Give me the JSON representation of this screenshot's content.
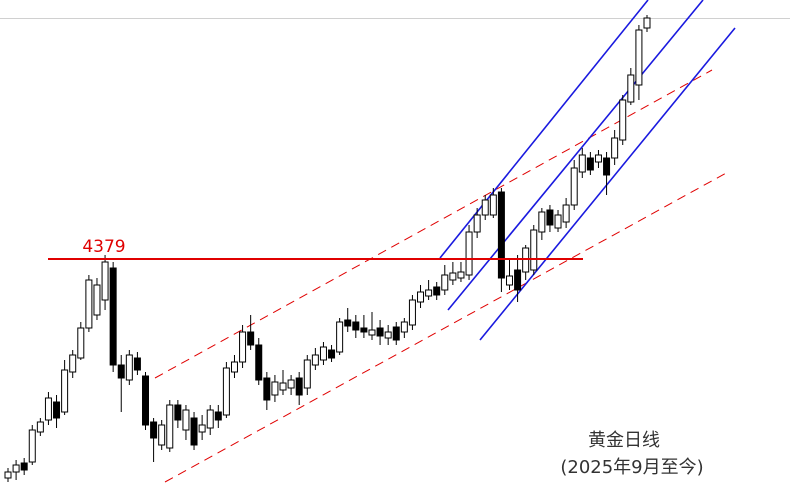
{
  "chart_data": {
    "type": "candlestick",
    "title": "黄金日线",
    "subtitle": "(2025年9月至今)",
    "level": 4379,
    "level_color": "#e00000",
    "up_color": "#ffffff",
    "down_color": "#000000",
    "edge_color": "#000000",
    "ylim": [
      3427,
      5415
    ],
    "open": [
      3503,
      3527,
      3563,
      3567,
      3687,
      3735,
      3807,
      3767,
      3927,
      3983,
      4103,
      4155,
      4215,
      4343,
      3955,
      3895,
      3983,
      3911,
      3727,
      3635,
      3623,
      3795,
      3695,
      3743,
      3687,
      3703,
      3767,
      3755,
      3927,
      3967,
      4087,
      4035,
      3903,
      3835,
      3855,
      3863,
      3903,
      3863,
      3955,
      3975,
      4015,
      4007,
      4135,
      4127,
      4103,
      4075,
      4103,
      4063,
      4107,
      4087,
      4115,
      4207,
      4231,
      4267,
      4255,
      4295,
      4303,
      4315,
      4487,
      4555,
      4555,
      4647,
      4275,
      4335,
      4327,
      4335,
      4487,
      4575,
      4503,
      4527,
      4595,
      4727,
      4783,
      4767,
      4783,
      4783,
      4855,
      5007,
      5075,
      5303
    ],
    "high": [
      3543,
      3575,
      3583,
      3715,
      3743,
      3847,
      3835,
      3975,
      4015,
      4127,
      4315,
      4303,
      4395,
      4367,
      3995,
      4015,
      4007,
      3927,
      3743,
      3735,
      3815,
      3815,
      3795,
      3767,
      3755,
      3795,
      3795,
      3967,
      3995,
      4115,
      4155,
      4063,
      3927,
      3915,
      3935,
      3915,
      3927,
      3995,
      4023,
      4047,
      4035,
      4143,
      4183,
      4155,
      4155,
      4167,
      4135,
      4115,
      4127,
      4143,
      4235,
      4275,
      4295,
      4287,
      4355,
      4367,
      4367,
      4515,
      4583,
      4635,
      4663,
      4663,
      4375,
      4395,
      4435,
      4515,
      4583,
      4595,
      4575,
      4623,
      4775,
      4823,
      4807,
      4815,
      4807,
      4895,
      5035,
      5143,
      5315,
      5355
    ],
    "low": [
      3487,
      3495,
      3515,
      3555,
      3671,
      3715,
      3703,
      3755,
      3903,
      3975,
      4087,
      4135,
      4175,
      3927,
      3767,
      3875,
      3915,
      3695,
      3567,
      3615,
      3607,
      3703,
      3655,
      3615,
      3655,
      3675,
      3703,
      3743,
      3903,
      3943,
      4015,
      3875,
      3775,
      3807,
      3835,
      3835,
      3795,
      3835,
      3935,
      3955,
      3967,
      3995,
      4087,
      4063,
      4063,
      4055,
      4035,
      4035,
      4035,
      4063,
      4095,
      4183,
      4215,
      4215,
      4235,
      4275,
      4287,
      4295,
      4463,
      4535,
      4543,
      4247,
      4255,
      4207,
      4295,
      4315,
      4455,
      4487,
      4487,
      4503,
      4575,
      4703,
      4715,
      4743,
      4635,
      4755,
      4835,
      4995,
      5015,
      5287
    ],
    "close": [
      3527,
      3555,
      3535,
      3695,
      3727,
      3823,
      3743,
      3935,
      3995,
      4103,
      4295,
      4275,
      4367,
      3955,
      3903,
      3995,
      3935,
      3715,
      3663,
      3715,
      3795,
      3735,
      3775,
      3635,
      3715,
      3775,
      3735,
      3943,
      3967,
      4087,
      4035,
      3895,
      3815,
      3887,
      3883,
      3895,
      3835,
      3975,
      3995,
      4027,
      3983,
      4127,
      4111,
      4095,
      4087,
      4095,
      4071,
      4087,
      4055,
      4127,
      4215,
      4247,
      4255,
      4235,
      4315,
      4323,
      4327,
      4487,
      4555,
      4615,
      4635,
      4303,
      4311,
      4255,
      4423,
      4495,
      4567,
      4515,
      4555,
      4595,
      4743,
      4795,
      4735,
      4795,
      4715,
      4863,
      5015,
      5115,
      5295,
      5343
    ]
  }
}
